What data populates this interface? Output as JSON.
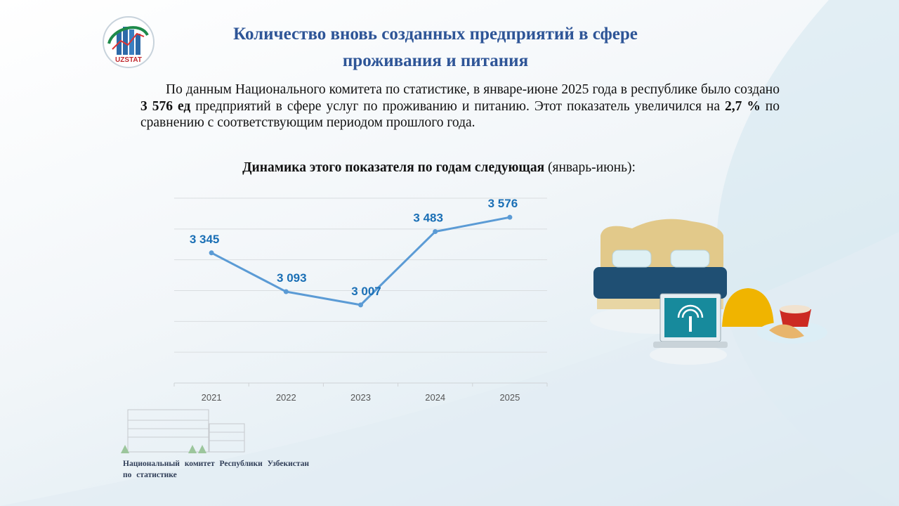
{
  "header": {
    "logo_text": "UZSTAT",
    "title_line1": "Количество вновь созданных предприятий в сфере",
    "title_line2": "проживания и питания"
  },
  "paragraph": {
    "part1": "По данным Национального комитета по статистике, в январе-июне 2025 года в республике было создано ",
    "bold1": "3 576 ед",
    "part2": " предприятий в сфере услуг по проживанию и питанию. Этот показатель увеличился на ",
    "bold2": "2,7 %",
    "part3": " по сравнению с соответствующим периодом прошлого года."
  },
  "subtitle": {
    "bold": "Динамика этого показателя по годам следующая",
    "normal": " (январь-июнь):"
  },
  "chart_data": {
    "type": "line",
    "categories": [
      "2021",
      "2022",
      "2023",
      "2024",
      "2025"
    ],
    "values": [
      3345,
      3093,
      3007,
      3483,
      3576
    ],
    "data_labels": [
      "3 345",
      "3 093",
      "3 007",
      "3 483",
      "3 576"
    ],
    "ylim": [
      2500,
      3700
    ],
    "grid": true,
    "line_color": "#5b9bd5",
    "label_color": "#1a6fb5"
  },
  "footer": {
    "line1": "Национальный комитет Республики Узбекистан",
    "line2": "по статистике"
  }
}
